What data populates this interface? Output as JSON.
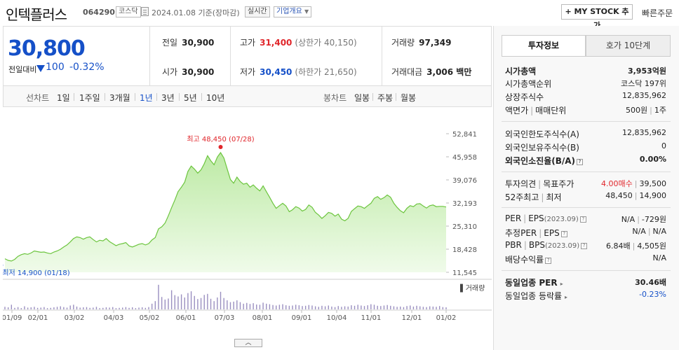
{
  "header": {
    "name": "인텍플러스",
    "code": "064290",
    "market": "코스닥",
    "date": "2024.01.08  기준(장마감)",
    "realtime": "실시간",
    "company_overview": "기업개요",
    "mystock": "+ MY STOCK 추가",
    "quick_order": "빠른주문"
  },
  "price": {
    "current": "30,800",
    "change_label": "전일대비",
    "change_value": "100",
    "change_pct": "-0.32%",
    "prev_label": "전일",
    "prev_value": "30,900",
    "open_label": "시가",
    "open_value": "30,900",
    "high_label": "고가",
    "high_value": "31,400",
    "upper_limit": "(상한가 40,150)",
    "low_label": "저가",
    "low_value": "30,450",
    "lower_limit": "(하한가 21,650)",
    "volume_label": "거래량",
    "volume_value": "97,349",
    "amount_label": "거래대금",
    "amount_value": "3,006 백만"
  },
  "periods": {
    "line_label": "선차트",
    "line": [
      "1일",
      "1주일",
      "3개월",
      "1년",
      "3년",
      "5년",
      "10년"
    ],
    "active": "1년",
    "candle_label": "봉차트",
    "candle": [
      "일봉",
      "주봉",
      "월봉"
    ]
  },
  "chart_data": {
    "type": "area",
    "x_ticks": [
      "01/09",
      "02/01",
      "03/02",
      "04/03",
      "05/02",
      "06/01",
      "07/03",
      "08/01",
      "09/01",
      "10/04",
      "11/01",
      "12/01",
      "01/02"
    ],
    "y_ticks": [
      "52,841",
      "45,958",
      "39,076",
      "32,193",
      "25,310",
      "18,428",
      "11,545"
    ],
    "ylim": [
      11545,
      52841
    ],
    "high_label": "최고 48,450 (07/28)",
    "low_label": "최저 14,900 (01/18)",
    "volume_label": "거래량",
    "values": [
      15600,
      15100,
      14900,
      15400,
      16300,
      16800,
      17100,
      16900,
      17300,
      17900,
      17700,
      17500,
      17600,
      17300,
      17100,
      17600,
      17900,
      18400,
      19100,
      19700,
      20600,
      21600,
      22100,
      21900,
      21400,
      21900,
      22100,
      21300,
      20600,
      21100,
      20900,
      21600,
      20700,
      20100,
      19500,
      19900,
      20100,
      20400,
      19400,
      19100,
      19500,
      19900,
      20100,
      19700,
      20100,
      21200,
      21900,
      24500,
      25100,
      26200,
      28400,
      30800,
      33100,
      35600,
      36900,
      38400,
      41600,
      43200,
      42300,
      41100,
      42100,
      43900,
      46300,
      44800,
      43600,
      45900,
      47200,
      45600,
      42400,
      39200,
      38100,
      39900,
      38600,
      37800,
      38100,
      36900,
      37600,
      36600,
      35800,
      37300,
      35600,
      33900,
      32100,
      30600,
      31400,
      32100,
      31300,
      29600,
      30200,
      31100,
      30700,
      29800,
      30300,
      31600,
      30900,
      29400,
      28600,
      27600,
      28400,
      29400,
      29100,
      28300,
      28900,
      27400,
      26900,
      27600,
      29700,
      30500,
      31300,
      31100,
      30600,
      31400,
      32100,
      33600,
      34100,
      33300,
      33800,
      34600,
      33900,
      32100,
      30900,
      29900,
      29300,
      30600,
      31400,
      31100,
      31900,
      32000,
      31300,
      30700,
      31400,
      31600,
      31100,
      31200,
      31200,
      31000
    ],
    "volumes": [
      0.1,
      0.08,
      0.18,
      0.06,
      0.09,
      0.05,
      0.12,
      0.07,
      0.08,
      0.1,
      0.06,
      0.07,
      0.09,
      0.05,
      0.06,
      0.08,
      0.1,
      0.12,
      0.09,
      0.07,
      0.15,
      0.18,
      0.11,
      0.07,
      0.08,
      0.09,
      0.06,
      0.07,
      0.1,
      0.05,
      0.06,
      0.08,
      0.07,
      0.09,
      0.05,
      0.06,
      0.07,
      0.09,
      0.06,
      0.08,
      0.05,
      0.07,
      0.08,
      0.06,
      0.09,
      0.22,
      0.32,
      0.95,
      0.48,
      0.38,
      0.42,
      0.74,
      0.55,
      0.5,
      0.58,
      0.46,
      0.63,
      0.7,
      0.52,
      0.4,
      0.44,
      0.56,
      0.6,
      0.41,
      0.32,
      0.46,
      0.68,
      0.44,
      0.35,
      0.28,
      0.3,
      0.35,
      0.28,
      0.22,
      0.25,
      0.21,
      0.24,
      0.19,
      0.18,
      0.26,
      0.22,
      0.2,
      0.17,
      0.15,
      0.18,
      0.2,
      0.16,
      0.14,
      0.15,
      0.18,
      0.16,
      0.13,
      0.14,
      0.17,
      0.15,
      0.12,
      0.1,
      0.14,
      0.12,
      0.15,
      0.11,
      0.09,
      0.13,
      0.1,
      0.12,
      0.11,
      0.16,
      0.14,
      0.18,
      0.15,
      0.13,
      0.16,
      0.2,
      0.18,
      0.14,
      0.13,
      0.15,
      0.17,
      0.14,
      0.12,
      0.1,
      0.11,
      0.09,
      0.13,
      0.15,
      0.11,
      0.14,
      0.12,
      0.1,
      0.09,
      0.12,
      0.11,
      0.1,
      0.13,
      0.09,
      0.08
    ]
  },
  "panel": {
    "tab_invest": "투자정보",
    "tab_quote": "호가 10단계",
    "market_cap_label": "시가총액",
    "market_cap_value": "3,953억원",
    "rank_label": "시가총액순위",
    "rank_value": "코스닥 197위",
    "shares_label": "상장주식수",
    "shares_value": "12,835,962",
    "par_label": "액면가",
    "unit_label": "매매단위",
    "par_value": "500원",
    "unit_value": "1주",
    "foreign_limit_label": "외국인한도주식수(A)",
    "foreign_limit_value": "12,835,962",
    "foreign_hold_label": "외국인보유주식수(B)",
    "foreign_hold_value": "0",
    "foreign_ratio_label": "외국인소진율(B/A)",
    "foreign_ratio_value": "0.00%",
    "opinion_label": "투자의견",
    "target_label": "목표주가",
    "opinion_value": "4.00매수",
    "target_value": "39,500",
    "w52_high_label": "52주최고",
    "w52_low_label": "최저",
    "w52_high_value": "48,450",
    "w52_low_value": "14,900",
    "per_label": "PER",
    "eps_label": "EPS",
    "eps_period": "(2023.09)",
    "per_value": "N/A",
    "eps_value": "-729원",
    "est_per_label": "추정PER",
    "est_eps_label": "EPS",
    "est_per_value": "N/A",
    "est_eps_value": "N/A",
    "pbr_label": "PBR",
    "bps_label": "BPS",
    "bps_period": "(2023.09)",
    "pbr_value": "6.84배",
    "bps_value": "4,505원",
    "div_label": "배당수익률",
    "div_value": "N/A",
    "sector_per_label": "동일업종 PER",
    "sector_per_value": "30.46배",
    "sector_rate_label": "동일업종 등락률",
    "sector_rate_value": "-0.23%"
  }
}
